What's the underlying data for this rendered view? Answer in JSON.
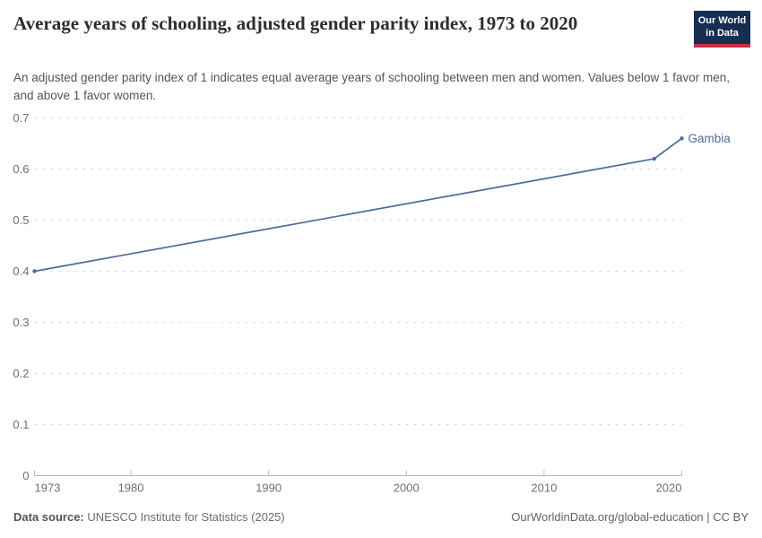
{
  "header": {
    "title": "Average years of schooling, adjusted gender parity index, 1973 to 2020",
    "subtitle": "An adjusted gender parity index of 1 indicates equal average years of schooling between men and women. Values below 1 favor men, and above 1 favor women.",
    "logo": {
      "line1": "Our World",
      "line2": "in Data",
      "bg_color": "#152e52",
      "accent_color": "#c62d3e"
    }
  },
  "chart_data": {
    "type": "line",
    "title": "Average years of schooling, adjusted gender parity index, 1973 to 2020",
    "xlabel": "",
    "ylabel": "",
    "x_range": [
      1973,
      2020
    ],
    "y_range": [
      0,
      0.7
    ],
    "grid": true,
    "legend_position": "end-of-line-label",
    "y_ticks": [
      {
        "v": 0,
        "label": "0"
      },
      {
        "v": 0.1,
        "label": "0.1"
      },
      {
        "v": 0.2,
        "label": "0.2"
      },
      {
        "v": 0.3,
        "label": "0.3"
      },
      {
        "v": 0.4,
        "label": "0.4"
      },
      {
        "v": 0.5,
        "label": "0.5"
      },
      {
        "v": 0.6,
        "label": "0.6"
      },
      {
        "v": 0.7,
        "label": "0.7"
      }
    ],
    "x_ticks": [
      {
        "v": 1973,
        "label": "1973",
        "anchor": "start"
      },
      {
        "v": 1980,
        "label": "1980"
      },
      {
        "v": 1990,
        "label": "1990"
      },
      {
        "v": 2000,
        "label": "2000"
      },
      {
        "v": 2010,
        "label": "2010"
      },
      {
        "v": 2020,
        "label": "2020",
        "anchor": "end"
      }
    ],
    "series": [
      {
        "name": "Gambia",
        "color": "#4C6A9C",
        "points": [
          [
            1973,
            0.4
          ],
          [
            2018,
            0.62
          ],
          [
            2020,
            0.66
          ]
        ]
      }
    ]
  },
  "footer": {
    "source_label": "Data source:",
    "source_value": "UNESCO Institute for Statistics (2025)",
    "attribution": "OurWorldinData.org/global-education | CC BY"
  }
}
